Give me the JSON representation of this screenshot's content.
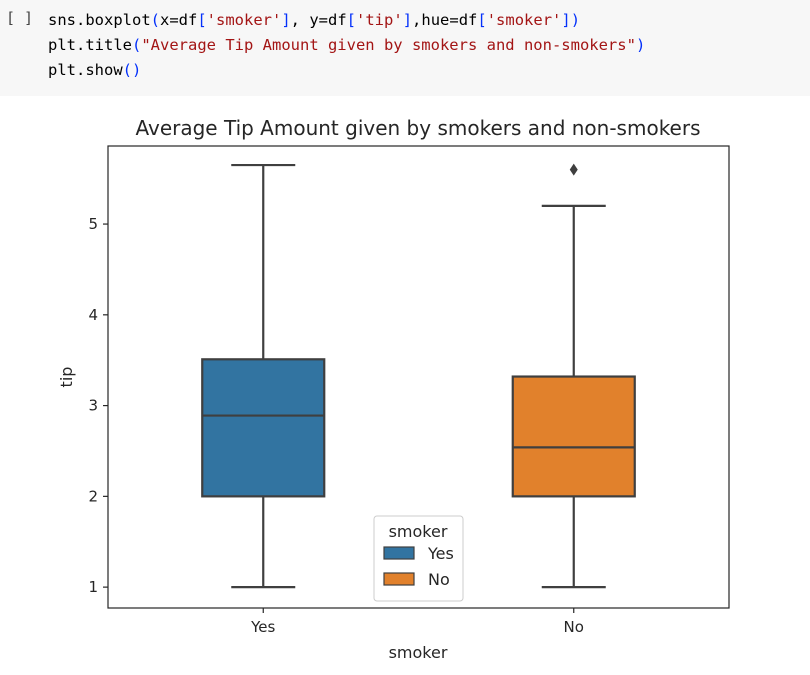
{
  "cell": {
    "run_label": "[ ]",
    "code_lines": [
      [
        {
          "t": "sns.boxplot",
          "c": "p"
        },
        {
          "t": "(",
          "c": "b"
        },
        {
          "t": "x=df",
          "c": "p"
        },
        {
          "t": "[",
          "c": "b"
        },
        {
          "t": "'smoker'",
          "c": "s"
        },
        {
          "t": "]",
          "c": "b"
        },
        {
          "t": ", y=df",
          "c": "p"
        },
        {
          "t": "[",
          "c": "b"
        },
        {
          "t": "'tip'",
          "c": "s"
        },
        {
          "t": "]",
          "c": "b"
        },
        {
          "t": ",hue=df",
          "c": "p"
        },
        {
          "t": "[",
          "c": "b"
        },
        {
          "t": "'smoker'",
          "c": "s"
        },
        {
          "t": "]",
          "c": "b"
        },
        {
          "t": ")",
          "c": "b"
        }
      ],
      [
        {
          "t": "plt.title",
          "c": "p"
        },
        {
          "t": "(",
          "c": "b"
        },
        {
          "t": "\"Average Tip Amount given by smokers and non-smokers\"",
          "c": "s"
        },
        {
          "t": ")",
          "c": "b"
        }
      ],
      [
        {
          "t": "plt.show",
          "c": "p"
        },
        {
          "t": "()",
          "c": "b"
        }
      ]
    ]
  },
  "chart_data": {
    "type": "box",
    "title": "Average Tip Amount given by smokers and non-smokers",
    "xlabel": "smoker",
    "ylabel": "tip",
    "categories": [
      "Yes",
      "No"
    ],
    "yticks": [
      1,
      2,
      3,
      4,
      5
    ],
    "ylim": [
      0.77,
      5.86
    ],
    "legend": {
      "title": "smoker",
      "placement": "lower center",
      "entries": [
        "Yes",
        "No"
      ]
    },
    "series": [
      {
        "name": "Yes",
        "color": "#3274a1",
        "whisker_low": 1.0,
        "q1": 2.0,
        "median": 2.89,
        "q3": 3.51,
        "whisker_high": 5.65,
        "outliers": []
      },
      {
        "name": "No",
        "color": "#e1812c",
        "whisker_low": 1.0,
        "q1": 2.0,
        "median": 2.54,
        "q3": 3.32,
        "whisker_high": 5.2,
        "outliers": [
          5.6
        ]
      }
    ]
  }
}
